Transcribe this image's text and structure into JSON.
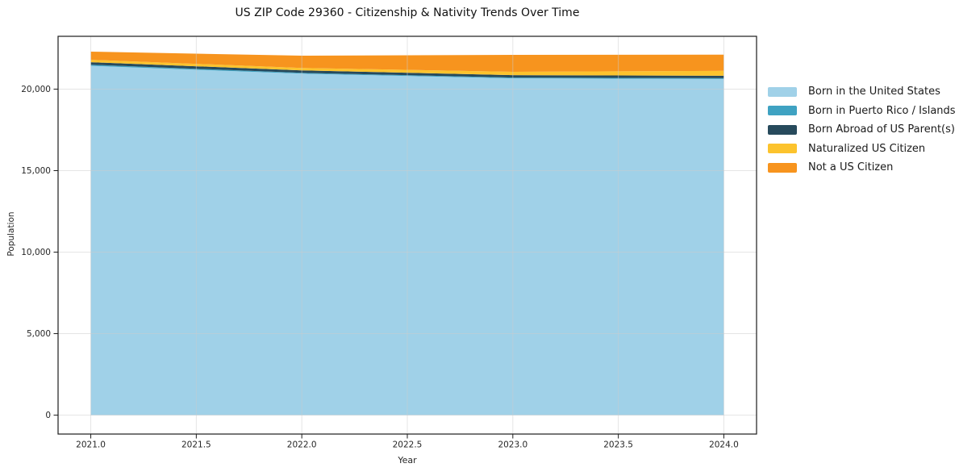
{
  "chart_data": {
    "type": "area",
    "stacked": true,
    "title": "US ZIP Code 29360 - Citizenship & Nativity Trends Over Time",
    "xlabel": "Year",
    "ylabel": "Population",
    "x": [
      2021,
      2022,
      2023,
      2024
    ],
    "series": [
      {
        "name": "Born in the United States",
        "color": "#A0D1E8",
        "values": [
          21430,
          20950,
          20660,
          20620
        ]
      },
      {
        "name": "Born in Puerto Rico / Islands",
        "color": "#3FA2C2",
        "values": [
          70,
          50,
          50,
          50
        ]
      },
      {
        "name": "Born Abroad of US Parent(s)",
        "color": "#274A5C",
        "values": [
          150,
          150,
          150,
          150
        ]
      },
      {
        "name": "Naturalized US Citizen",
        "color": "#FCC32D",
        "values": [
          150,
          150,
          200,
          300
        ]
      },
      {
        "name": "Not a US Citizen",
        "color": "#F7941E",
        "values": [
          500,
          750,
          1040,
          990
        ]
      }
    ],
    "totals": [
      22300,
      22050,
      22100,
      22110
    ],
    "xlim": [
      2020.845,
      2024.155
    ],
    "ylim": [
      -1160,
      23240
    ],
    "x_ticks": [
      2021.0,
      2021.5,
      2022.0,
      2022.5,
      2023.0,
      2023.5,
      2024.0
    ],
    "x_tick_labels": [
      "2021.0",
      "2021.5",
      "2022.0",
      "2022.5",
      "2023.0",
      "2023.5",
      "2024.0"
    ],
    "y_ticks": [
      0,
      5000,
      10000,
      15000,
      20000
    ],
    "y_tick_labels": [
      "0",
      "5,000",
      "10,000",
      "15,000",
      "20,000"
    ],
    "grid": true,
    "grid_color": "#cccccc",
    "spine_color": "#1c1c1c",
    "legend_position": "right",
    "background_color": "#ffffff"
  }
}
